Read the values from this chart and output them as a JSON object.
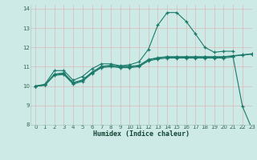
{
  "xlabel": "Humidex (Indice chaleur)",
  "bg_color": "#ceeae6",
  "grid_color": "#d9b8b8",
  "line_color": "#1a7a6a",
  "xlim": [
    -0.5,
    23
  ],
  "ylim": [
    8,
    14.2
  ],
  "x_ticks": [
    0,
    1,
    2,
    3,
    4,
    5,
    6,
    7,
    8,
    9,
    10,
    11,
    12,
    13,
    14,
    15,
    16,
    17,
    18,
    19,
    20,
    21,
    22,
    23
  ],
  "y_ticks": [
    8,
    9,
    10,
    11,
    12,
    13,
    14
  ],
  "series1_x": [
    0,
    1,
    2,
    3,
    4,
    5,
    6,
    7,
    8,
    9,
    10,
    11,
    12,
    13,
    14,
    15,
    16,
    17,
    18,
    19,
    20,
    21
  ],
  "series1_y": [
    10.0,
    10.1,
    10.8,
    10.8,
    10.3,
    10.5,
    10.9,
    11.15,
    11.15,
    11.05,
    11.1,
    11.25,
    11.9,
    13.15,
    13.8,
    13.8,
    13.35,
    12.7,
    12.0,
    11.75,
    11.8,
    11.8
  ],
  "series2_x": [
    0,
    1,
    2,
    3,
    4,
    5,
    6,
    7,
    8,
    9,
    10,
    11,
    12,
    13,
    14,
    15,
    16,
    17,
    18,
    19,
    20,
    21,
    22,
    23
  ],
  "series2_y": [
    10.0,
    10.05,
    10.6,
    10.65,
    10.15,
    10.3,
    10.7,
    11.0,
    11.05,
    11.0,
    11.0,
    11.05,
    11.35,
    11.45,
    11.5,
    11.5,
    11.5,
    11.5,
    11.5,
    11.5,
    11.5,
    11.55,
    11.6,
    11.65
  ],
  "series3_x": [
    0,
    1,
    2,
    3,
    4,
    5,
    6,
    7,
    8,
    9,
    10,
    11,
    12,
    13,
    14,
    15,
    16,
    17,
    18,
    19,
    20,
    21,
    22,
    23
  ],
  "series3_y": [
    10.0,
    10.05,
    10.62,
    10.68,
    10.18,
    10.32,
    10.72,
    11.02,
    11.07,
    11.02,
    11.02,
    11.07,
    11.37,
    11.47,
    11.52,
    11.52,
    11.52,
    11.52,
    11.52,
    11.52,
    11.52,
    11.57,
    11.62,
    11.67
  ],
  "series4_x": [
    0,
    1,
    2,
    3,
    4,
    5,
    6,
    7,
    8,
    9,
    10,
    11,
    12,
    13,
    14,
    15,
    16,
    17,
    18,
    19,
    20,
    21,
    22,
    23
  ],
  "series4_y": [
    10.0,
    10.05,
    10.55,
    10.6,
    10.1,
    10.25,
    10.65,
    10.95,
    11.0,
    10.95,
    10.95,
    11.0,
    11.3,
    11.4,
    11.45,
    11.45,
    11.45,
    11.45,
    11.45,
    11.45,
    11.45,
    11.5,
    8.95,
    7.8
  ]
}
